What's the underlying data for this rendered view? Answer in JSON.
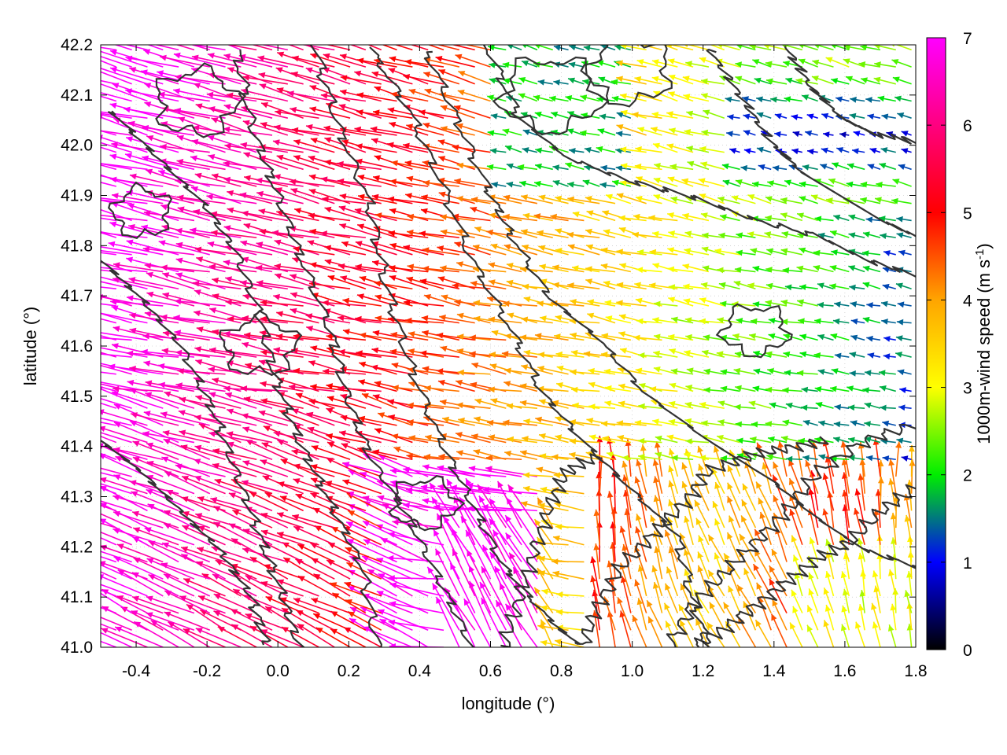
{
  "chart_data": {
    "type": "vector-field",
    "xlabel": "longitude (°)",
    "ylabel": "latitude (°)",
    "xlim": [
      -0.5,
      1.8
    ],
    "ylim": [
      41.0,
      42.2
    ],
    "x_ticks": [
      "-0.4",
      "-0.2",
      "0.0",
      "0.2",
      "0.4",
      "0.6",
      "0.8",
      "1.0",
      "1.2",
      "1.4",
      "1.6",
      "1.8"
    ],
    "x_tick_values": [
      -0.4,
      -0.2,
      0.0,
      0.2,
      0.4,
      0.6,
      0.8,
      1.0,
      1.2,
      1.4,
      1.6,
      1.8
    ],
    "y_ticks": [
      "41.0",
      "41.1",
      "41.2",
      "41.3",
      "41.4",
      "41.5",
      "41.6",
      "41.7",
      "41.8",
      "41.9",
      "42.0",
      "42.1",
      "42.2"
    ],
    "y_tick_values": [
      41.0,
      41.1,
      41.2,
      41.3,
      41.4,
      41.5,
      41.6,
      41.7,
      41.8,
      41.9,
      42.0,
      42.1,
      42.2
    ],
    "grid": true,
    "colorbar": {
      "label_main": "1000m-wind speed (m s",
      "label_sup": "-1",
      "label_end": ")",
      "range": [
        0,
        7
      ],
      "ticks": [
        "0",
        "1",
        "2",
        "3",
        "4",
        "5",
        "6",
        "7"
      ],
      "tick_values": [
        0,
        1,
        2,
        3,
        4,
        5,
        6,
        7
      ],
      "colors": [
        "#000000",
        "#0000ff",
        "#00ee00",
        "#ffff00",
        "#ffa500",
        "#ff0000",
        "#ff00ff"
      ]
    },
    "contour_color": "#333333"
  }
}
